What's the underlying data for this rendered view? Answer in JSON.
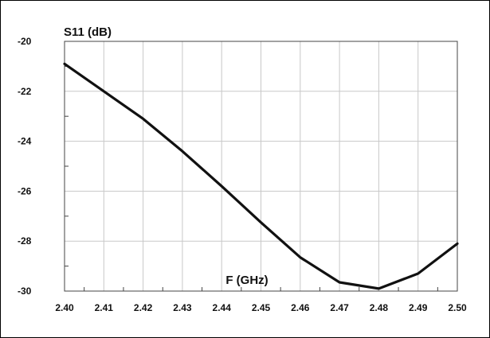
{
  "chart_data": {
    "type": "line",
    "ylabel": "S11 (dB)",
    "xlabel": "F (GHz)",
    "xlim": [
      2.4,
      2.5
    ],
    "ylim": [
      -30,
      -20
    ],
    "grid": true,
    "x_ticks": [
      "2.40",
      "2.41",
      "2.42",
      "2.43",
      "2.44",
      "2.45",
      "2.46",
      "2.47",
      "2.48",
      "2.49",
      "2.50"
    ],
    "y_ticks": [
      "-20",
      "-22",
      "-24",
      "-26",
      "-28",
      "-30"
    ],
    "series": [
      {
        "x": [
          2.4,
          2.41,
          2.42,
          2.43,
          2.44,
          2.45,
          2.46,
          2.47,
          2.48,
          2.49,
          2.5
        ],
        "values": [
          -20.9,
          -22.0,
          -23.1,
          -24.4,
          -25.8,
          -27.25,
          -28.65,
          -29.65,
          -29.9,
          -29.3,
          -28.1
        ],
        "color": "#111111"
      }
    ]
  }
}
